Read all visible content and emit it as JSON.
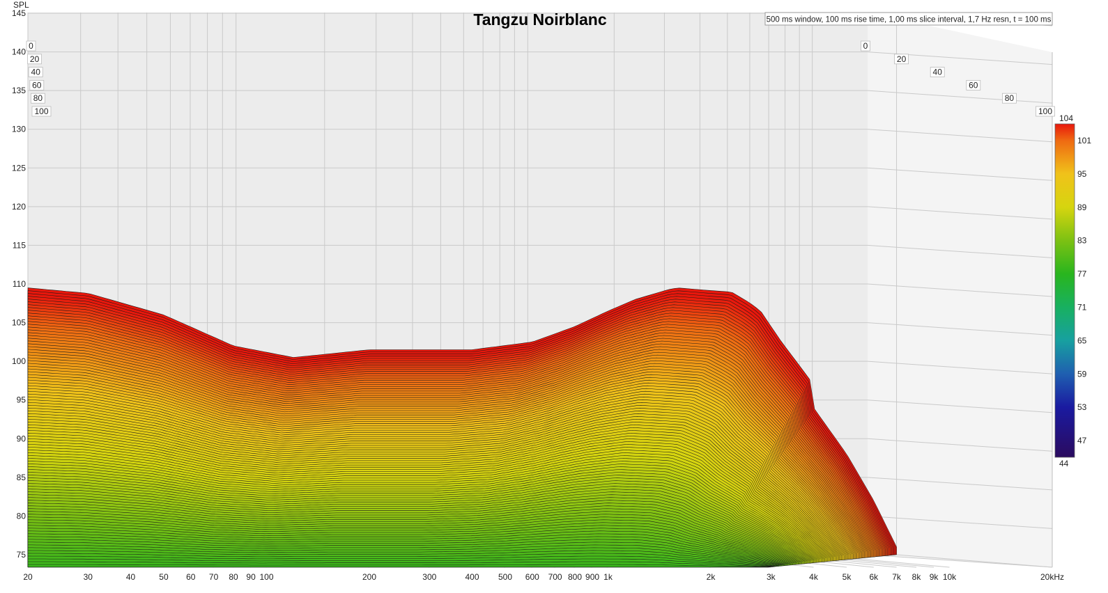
{
  "chart_data": {
    "type": "waterfall",
    "title": "Tangzu Noirblanc",
    "subtitle": "500 ms window, 100 ms rise time, 1,00 ms slice interval, 1,7 Hz resn, t = 100 ms",
    "ylabel": "SPL",
    "xlabel_unit": "kHz",
    "ylim": [
      73,
      145
    ],
    "xlim": [
      20,
      20000
    ],
    "x_scale": "log",
    "y_ticks": [
      145,
      140,
      135,
      130,
      125,
      120,
      115,
      110,
      105,
      100,
      95,
      90,
      85,
      80,
      75
    ],
    "x_ticks": [
      {
        "f": 20,
        "label": "20"
      },
      {
        "f": 30,
        "label": "30"
      },
      {
        "f": 40,
        "label": "40"
      },
      {
        "f": 50,
        "label": "50"
      },
      {
        "f": 60,
        "label": "60"
      },
      {
        "f": 70,
        "label": "70"
      },
      {
        "f": 80,
        "label": "80"
      },
      {
        "f": 90,
        "label": "90"
      },
      {
        "f": 100,
        "label": "100"
      },
      {
        "f": 200,
        "label": "200"
      },
      {
        "f": 300,
        "label": "300"
      },
      {
        "f": 400,
        "label": "400"
      },
      {
        "f": 500,
        "label": "500"
      },
      {
        "f": 600,
        "label": "600"
      },
      {
        "f": 700,
        "label": "700"
      },
      {
        "f": 800,
        "label": "800"
      },
      {
        "f": 900,
        "label": "900"
      },
      {
        "f": 1000,
        "label": "1k"
      },
      {
        "f": 2000,
        "label": "2k"
      },
      {
        "f": 3000,
        "label": "3k"
      },
      {
        "f": 4000,
        "label": "4k"
      },
      {
        "f": 5000,
        "label": "5k"
      },
      {
        "f": 6000,
        "label": "6k"
      },
      {
        "f": 7000,
        "label": "7k"
      },
      {
        "f": 8000,
        "label": "8k"
      },
      {
        "f": 9000,
        "label": "9k"
      },
      {
        "f": 10000,
        "label": "10k"
      },
      {
        "f": 20000,
        "label": "20kHz"
      }
    ],
    "time_labels": [
      "0",
      "20",
      "40",
      "60",
      "80",
      "100"
    ],
    "colorbar": {
      "min": 44,
      "max": 104,
      "ticks": [
        104,
        101,
        95,
        89,
        83,
        77,
        71,
        65,
        59,
        53,
        47,
        44
      ]
    },
    "front_slice": {
      "freq_hz": [
        20,
        30,
        50,
        80,
        120,
        200,
        400,
        600,
        800,
        1000,
        1200,
        1600,
        2000,
        2300,
        2800,
        3200,
        4000,
        5000,
        6000,
        7000
      ],
      "spl_db": [
        109.5,
        108.8,
        106,
        102,
        100.5,
        101.5,
        101.5,
        102.5,
        104.5,
        106.5,
        108,
        109.5,
        109,
        108.5,
        105,
        100,
        94,
        88,
        82,
        76
      ]
    },
    "back_slice_ridge": {
      "freq_hz": [
        1200,
        1500,
        2000,
        2600,
        3200,
        4000
      ],
      "spl_db": [
        108,
        109.5,
        109.5,
        110.5,
        109,
        104
      ]
    },
    "slice_count": 100
  }
}
